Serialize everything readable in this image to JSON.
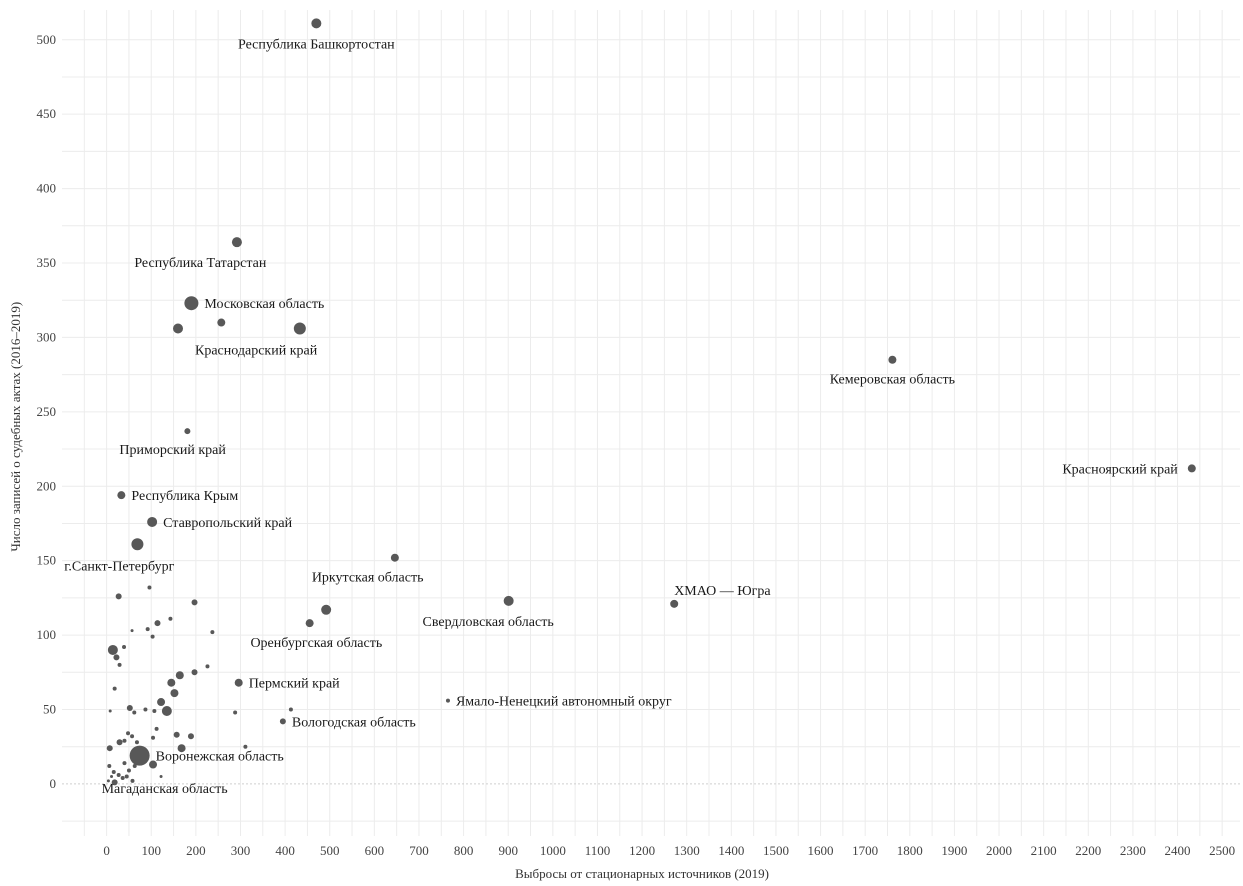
{
  "colors": {
    "point": "#585858",
    "grid": "#ececec",
    "text": "#1a1a1a"
  },
  "chart_data": {
    "type": "scatter",
    "xlabel": "Выбросы от стационарных источников (2019)",
    "ylabel": "Число записей о судебных актах (2016–2019)",
    "xlim": [
      -100,
      2540
    ],
    "ylim": [
      -35,
      520
    ],
    "xticks": [
      0,
      100,
      200,
      300,
      400,
      500,
      600,
      700,
      800,
      900,
      1000,
      1100,
      1200,
      1300,
      1400,
      1500,
      1600,
      1700,
      1800,
      1900,
      2000,
      2100,
      2200,
      2300,
      2400,
      2500
    ],
    "yticks": [
      0,
      50,
      100,
      150,
      200,
      250,
      300,
      350,
      400,
      450,
      500
    ],
    "grid": true,
    "labeled_points": [
      {
        "label": "Республика Башкортостан",
        "x": 470,
        "y": 511,
        "size": 5,
        "anchor": "below"
      },
      {
        "label": "Республика Татарстан",
        "x": 292,
        "y": 364,
        "size": 5,
        "anchor": "below-left"
      },
      {
        "label": "Московская область",
        "x": 190,
        "y": 323,
        "size": 7,
        "anchor": "right"
      },
      {
        "label": "Краснодарский край",
        "x": 433,
        "y": 306,
        "size": 6,
        "anchor": "below-left"
      },
      {
        "label": "Кемеровская область",
        "x": 1761,
        "y": 285,
        "size": 4,
        "anchor": "below"
      },
      {
        "label": "Приморский край",
        "x": 181,
        "y": 237,
        "size": 3,
        "anchor": "below"
      },
      {
        "label": "Красноярский край",
        "x": 2432,
        "y": 212,
        "size": 4,
        "anchor": "left"
      },
      {
        "label": "Республика Крым",
        "x": 33,
        "y": 194,
        "size": 4,
        "anchor": "right"
      },
      {
        "label": "Ставропольский край",
        "x": 102,
        "y": 176,
        "size": 5,
        "anchor": "right"
      },
      {
        "label": "г.Санкт-Петербург",
        "x": 69,
        "y": 161,
        "size": 6,
        "anchor": "below-left"
      },
      {
        "label": "Иркутская область",
        "x": 646,
        "y": 152,
        "size": 4,
        "anchor": "below-left"
      },
      {
        "label": "ХМАО — Югра",
        "x": 1272,
        "y": 121,
        "size": 4,
        "anchor": "above-right"
      },
      {
        "label": "Свердловская область",
        "x": 901,
        "y": 123,
        "size": 5,
        "anchor": "below"
      },
      {
        "label": "Оренбургская область",
        "x": 455,
        "y": 108,
        "size": 4,
        "anchor": "below"
      },
      {
        "label": "Пермский край",
        "x": 296,
        "y": 68,
        "size": 4,
        "anchor": "right"
      },
      {
        "label": "Ямало-Ненецкий автономный округ",
        "x": 765,
        "y": 56,
        "size": 2,
        "anchor": "right"
      },
      {
        "label": "Вологодская область",
        "x": 395,
        "y": 42,
        "size": 3,
        "anchor": "right"
      },
      {
        "label": "Воронежская область",
        "x": 74,
        "y": 19,
        "size": 10,
        "anchor": "right"
      },
      {
        "label": "Магаданская область",
        "x": 45,
        "y": 5,
        "size": 2,
        "anchor": "below"
      }
    ],
    "unlabeled_points": [
      {
        "x": 160,
        "y": 306,
        "size": 5
      },
      {
        "x": 257,
        "y": 310,
        "size": 4
      },
      {
        "x": 492,
        "y": 117,
        "size": 5
      },
      {
        "x": 27,
        "y": 126,
        "size": 3
      },
      {
        "x": 96,
        "y": 132,
        "size": 2
      },
      {
        "x": 197,
        "y": 122,
        "size": 3
      },
      {
        "x": 143,
        "y": 111,
        "size": 2
      },
      {
        "x": 114,
        "y": 108,
        "size": 3
      },
      {
        "x": 92,
        "y": 104,
        "size": 2
      },
      {
        "x": 103,
        "y": 99,
        "size": 2
      },
      {
        "x": 237,
        "y": 102,
        "size": 2
      },
      {
        "x": 57,
        "y": 103,
        "size": 1.5
      },
      {
        "x": 14,
        "y": 90,
        "size": 5
      },
      {
        "x": 39,
        "y": 92,
        "size": 2
      },
      {
        "x": 22,
        "y": 85,
        "size": 3
      },
      {
        "x": 29,
        "y": 80,
        "size": 2
      },
      {
        "x": 226,
        "y": 79,
        "size": 2
      },
      {
        "x": 197,
        "y": 75,
        "size": 3
      },
      {
        "x": 164,
        "y": 73,
        "size": 4
      },
      {
        "x": 145,
        "y": 68,
        "size": 4
      },
      {
        "x": 18,
        "y": 64,
        "size": 2
      },
      {
        "x": 152,
        "y": 61,
        "size": 4
      },
      {
        "x": 122,
        "y": 55,
        "size": 4
      },
      {
        "x": 135,
        "y": 49,
        "size": 5
      },
      {
        "x": 87,
        "y": 50,
        "size": 2
      },
      {
        "x": 107,
        "y": 49,
        "size": 2
      },
      {
        "x": 52,
        "y": 51,
        "size": 3
      },
      {
        "x": 62,
        "y": 48,
        "size": 2
      },
      {
        "x": 8,
        "y": 49,
        "size": 1.5
      },
      {
        "x": 288,
        "y": 48,
        "size": 2
      },
      {
        "x": 413,
        "y": 50,
        "size": 2
      },
      {
        "x": 157,
        "y": 33,
        "size": 3
      },
      {
        "x": 189,
        "y": 32,
        "size": 3
      },
      {
        "x": 112,
        "y": 37,
        "size": 2
      },
      {
        "x": 104,
        "y": 31,
        "size": 2
      },
      {
        "x": 48,
        "y": 34,
        "size": 2
      },
      {
        "x": 57,
        "y": 32,
        "size": 2
      },
      {
        "x": 40,
        "y": 29,
        "size": 2
      },
      {
        "x": 29,
        "y": 28,
        "size": 3
      },
      {
        "x": 68,
        "y": 28,
        "size": 2
      },
      {
        "x": 7,
        "y": 24,
        "size": 3
      },
      {
        "x": 168,
        "y": 24,
        "size": 4
      },
      {
        "x": 311,
        "y": 25,
        "size": 2
      },
      {
        "x": 87,
        "y": 21,
        "size": 2
      },
      {
        "x": 104,
        "y": 13,
        "size": 4
      },
      {
        "x": 40,
        "y": 14,
        "size": 2
      },
      {
        "x": 63,
        "y": 12,
        "size": 2
      },
      {
        "x": 6,
        "y": 12,
        "size": 2
      },
      {
        "x": 16,
        "y": 8,
        "size": 2
      },
      {
        "x": 27,
        "y": 6,
        "size": 2
      },
      {
        "x": 36,
        "y": 4,
        "size": 2
      },
      {
        "x": 50,
        "y": 9,
        "size": 2
      },
      {
        "x": 122,
        "y": 5,
        "size": 1.5
      },
      {
        "x": 18,
        "y": 1,
        "size": 3
      },
      {
        "x": 4,
        "y": 2,
        "size": 1.5
      },
      {
        "x": 58,
        "y": 2,
        "size": 2
      },
      {
        "x": 11,
        "y": 5,
        "size": 1.5
      }
    ]
  }
}
